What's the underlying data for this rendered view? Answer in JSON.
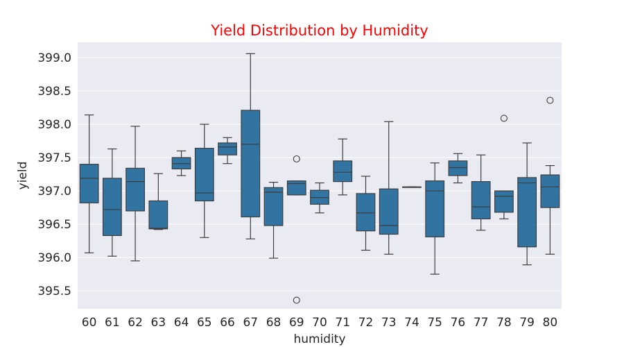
{
  "chart_data": {
    "type": "box",
    "title": "Yield Distribution by Humidity",
    "xlabel": "humidity",
    "ylabel": "yield",
    "ylim": [
      395.23,
      399.23
    ],
    "yticks": [
      "395.5",
      "396.0",
      "396.5",
      "397.0",
      "397.5",
      "398.0",
      "398.5",
      "399.0"
    ],
    "grid": true,
    "colors": {
      "background": "#eaeaf2",
      "box": "#3274a1",
      "line": "#3d3d3d",
      "grid": "#ffffff",
      "title": "#ff0000"
    },
    "categories": [
      "60",
      "61",
      "62",
      "63",
      "64",
      "65",
      "66",
      "67",
      "68",
      "69",
      "70",
      "71",
      "72",
      "73",
      "74",
      "75",
      "76",
      "77",
      "78",
      "79",
      "80"
    ],
    "boxes": [
      {
        "category": "60",
        "min": 396.07,
        "q1": 396.82,
        "median": 397.19,
        "q3": 397.4,
        "max": 398.14,
        "outliers": []
      },
      {
        "category": "61",
        "min": 396.02,
        "q1": 396.33,
        "median": 396.72,
        "q3": 397.19,
        "max": 397.63,
        "outliers": []
      },
      {
        "category": "62",
        "min": 395.95,
        "q1": 396.7,
        "median": 397.14,
        "q3": 397.34,
        "max": 397.97,
        "outliers": []
      },
      {
        "category": "63",
        "min": 396.42,
        "q1": 396.43,
        "median": 396.44,
        "q3": 396.85,
        "max": 397.26,
        "outliers": []
      },
      {
        "category": "64",
        "min": 397.23,
        "q1": 397.33,
        "median": 397.41,
        "q3": 397.5,
        "max": 397.6,
        "outliers": []
      },
      {
        "category": "65",
        "min": 396.3,
        "q1": 396.85,
        "median": 396.97,
        "q3": 397.64,
        "max": 398.0,
        "outliers": []
      },
      {
        "category": "66",
        "min": 397.41,
        "q1": 397.54,
        "median": 397.66,
        "q3": 397.72,
        "max": 397.8,
        "outliers": []
      },
      {
        "category": "67",
        "min": 396.28,
        "q1": 396.61,
        "median": 397.7,
        "q3": 398.21,
        "max": 399.06,
        "outliers": []
      },
      {
        "category": "68",
        "min": 395.99,
        "q1": 396.48,
        "median": 396.98,
        "q3": 397.05,
        "max": 397.13,
        "outliers": []
      },
      {
        "category": "69",
        "min": 396.94,
        "q1": 396.94,
        "median": 397.11,
        "q3": 397.15,
        "max": 397.15,
        "outliers": [
          397.48,
          395.36
        ]
      },
      {
        "category": "70",
        "min": 396.67,
        "q1": 396.8,
        "median": 396.9,
        "q3": 397.01,
        "max": 397.12,
        "outliers": []
      },
      {
        "category": "71",
        "min": 396.94,
        "q1": 397.14,
        "median": 397.28,
        "q3": 397.45,
        "max": 397.78,
        "outliers": []
      },
      {
        "category": "72",
        "min": 396.11,
        "q1": 396.4,
        "median": 396.67,
        "q3": 396.96,
        "max": 397.22,
        "outliers": []
      },
      {
        "category": "73",
        "min": 396.05,
        "q1": 396.35,
        "median": 396.48,
        "q3": 397.03,
        "max": 398.04,
        "outliers": []
      },
      {
        "category": "74",
        "min": 397.06,
        "q1": 397.06,
        "median": 397.06,
        "q3": 397.06,
        "max": 397.06,
        "outliers": []
      },
      {
        "category": "75",
        "min": 395.75,
        "q1": 396.31,
        "median": 397.0,
        "q3": 397.15,
        "max": 397.42,
        "outliers": []
      },
      {
        "category": "76",
        "min": 397.12,
        "q1": 397.23,
        "median": 397.35,
        "q3": 397.45,
        "max": 397.56,
        "outliers": []
      },
      {
        "category": "77",
        "min": 396.41,
        "q1": 396.58,
        "median": 396.76,
        "q3": 397.14,
        "max": 397.54,
        "outliers": []
      },
      {
        "category": "78",
        "min": 396.58,
        "q1": 396.68,
        "median": 396.92,
        "q3": 397.0,
        "max": 397.0,
        "outliers": [
          398.09
        ]
      },
      {
        "category": "79",
        "min": 395.89,
        "q1": 396.16,
        "median": 397.12,
        "q3": 397.2,
        "max": 397.72,
        "outliers": []
      },
      {
        "category": "80",
        "min": 396.05,
        "q1": 396.75,
        "median": 397.06,
        "q3": 397.24,
        "max": 397.38,
        "outliers": [
          398.36
        ]
      }
    ]
  }
}
